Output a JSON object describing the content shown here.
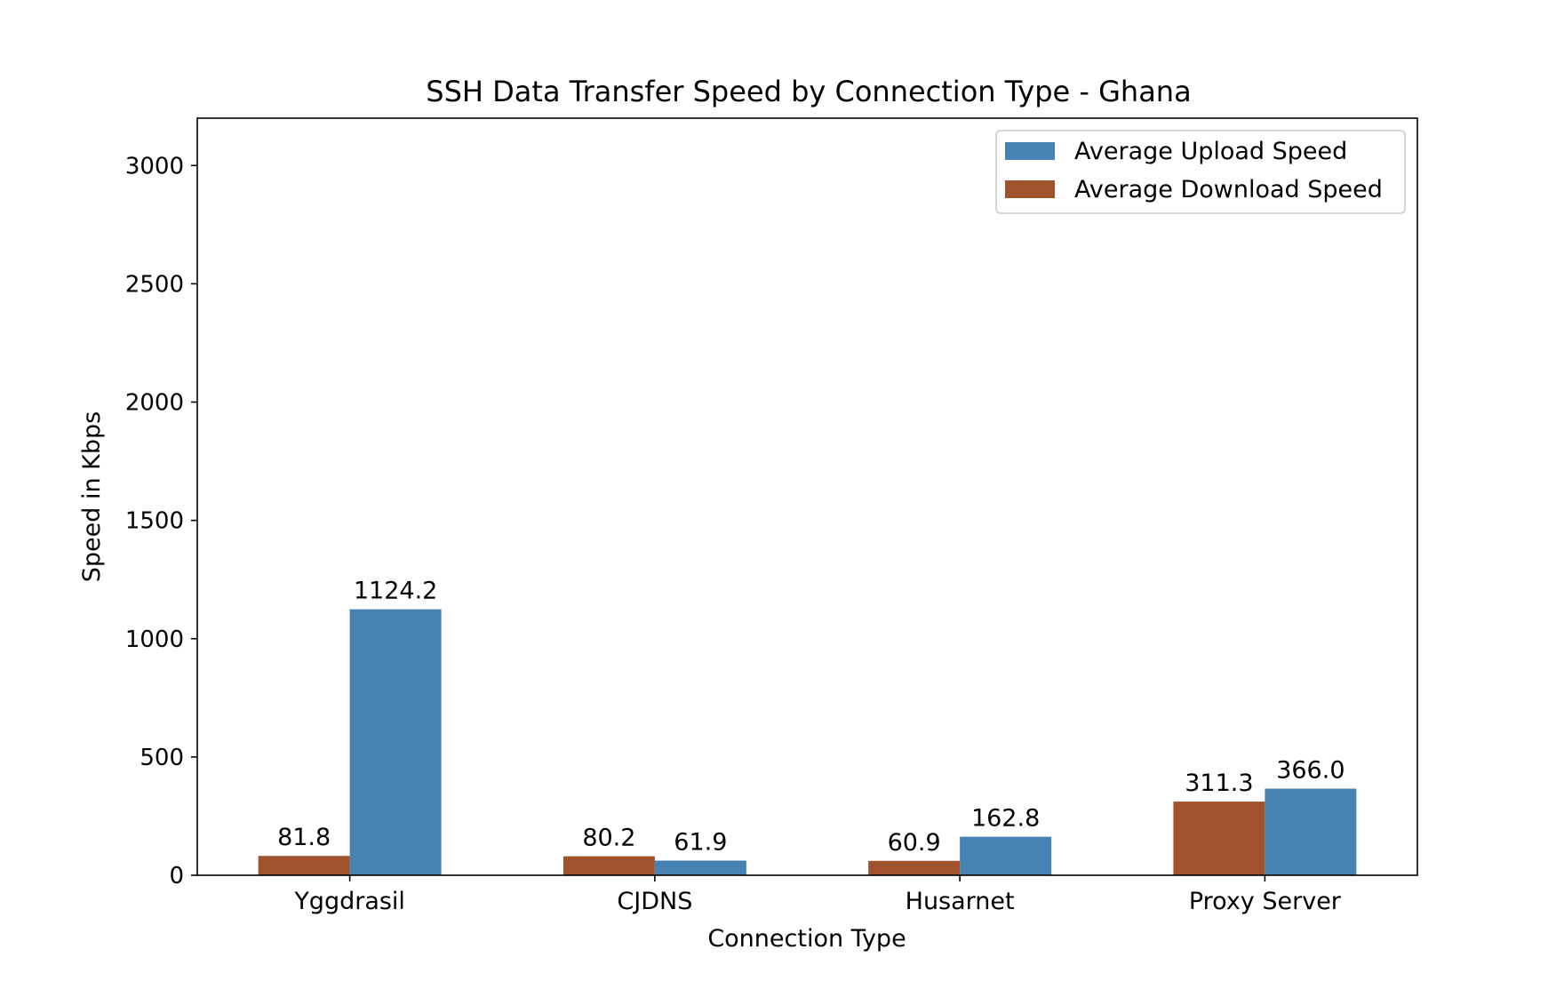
{
  "chart_data": {
    "type": "bar",
    "title": "SSH Data Transfer Speed by Connection Type - Ghana",
    "xlabel": "Connection Type",
    "ylabel": "Speed in Kbps",
    "categories": [
      "Yggdrasil",
      "CJDNS",
      "Husarnet",
      "Proxy Server"
    ],
    "series": [
      {
        "name": "Average Download Speed",
        "color": "#A0522D",
        "values": [
          81.8,
          80.2,
          60.9,
          311.3
        ]
      },
      {
        "name": "Average Upload Speed",
        "color": "#4682B4",
        "values": [
          1124.2,
          61.9,
          162.8,
          366.0
        ]
      }
    ],
    "data_labels": [
      [
        "81.8",
        "80.2",
        "60.9",
        "311.3"
      ],
      [
        "1124.2",
        "61.9",
        "162.8",
        "366.0"
      ]
    ],
    "ylim": [
      0,
      3200
    ],
    "yticks": [
      0,
      500,
      1000,
      1500,
      2000,
      2500,
      3000
    ],
    "ytick_labels": [
      "0",
      "500",
      "1000",
      "1500",
      "2000",
      "2500",
      "3000"
    ],
    "legend": {
      "position": "top-right",
      "entries": [
        {
          "label": "Average Upload Speed",
          "color": "#4682B4"
        },
        {
          "label": "Average Download Speed",
          "color": "#A0522D"
        }
      ]
    },
    "grid": false
  }
}
